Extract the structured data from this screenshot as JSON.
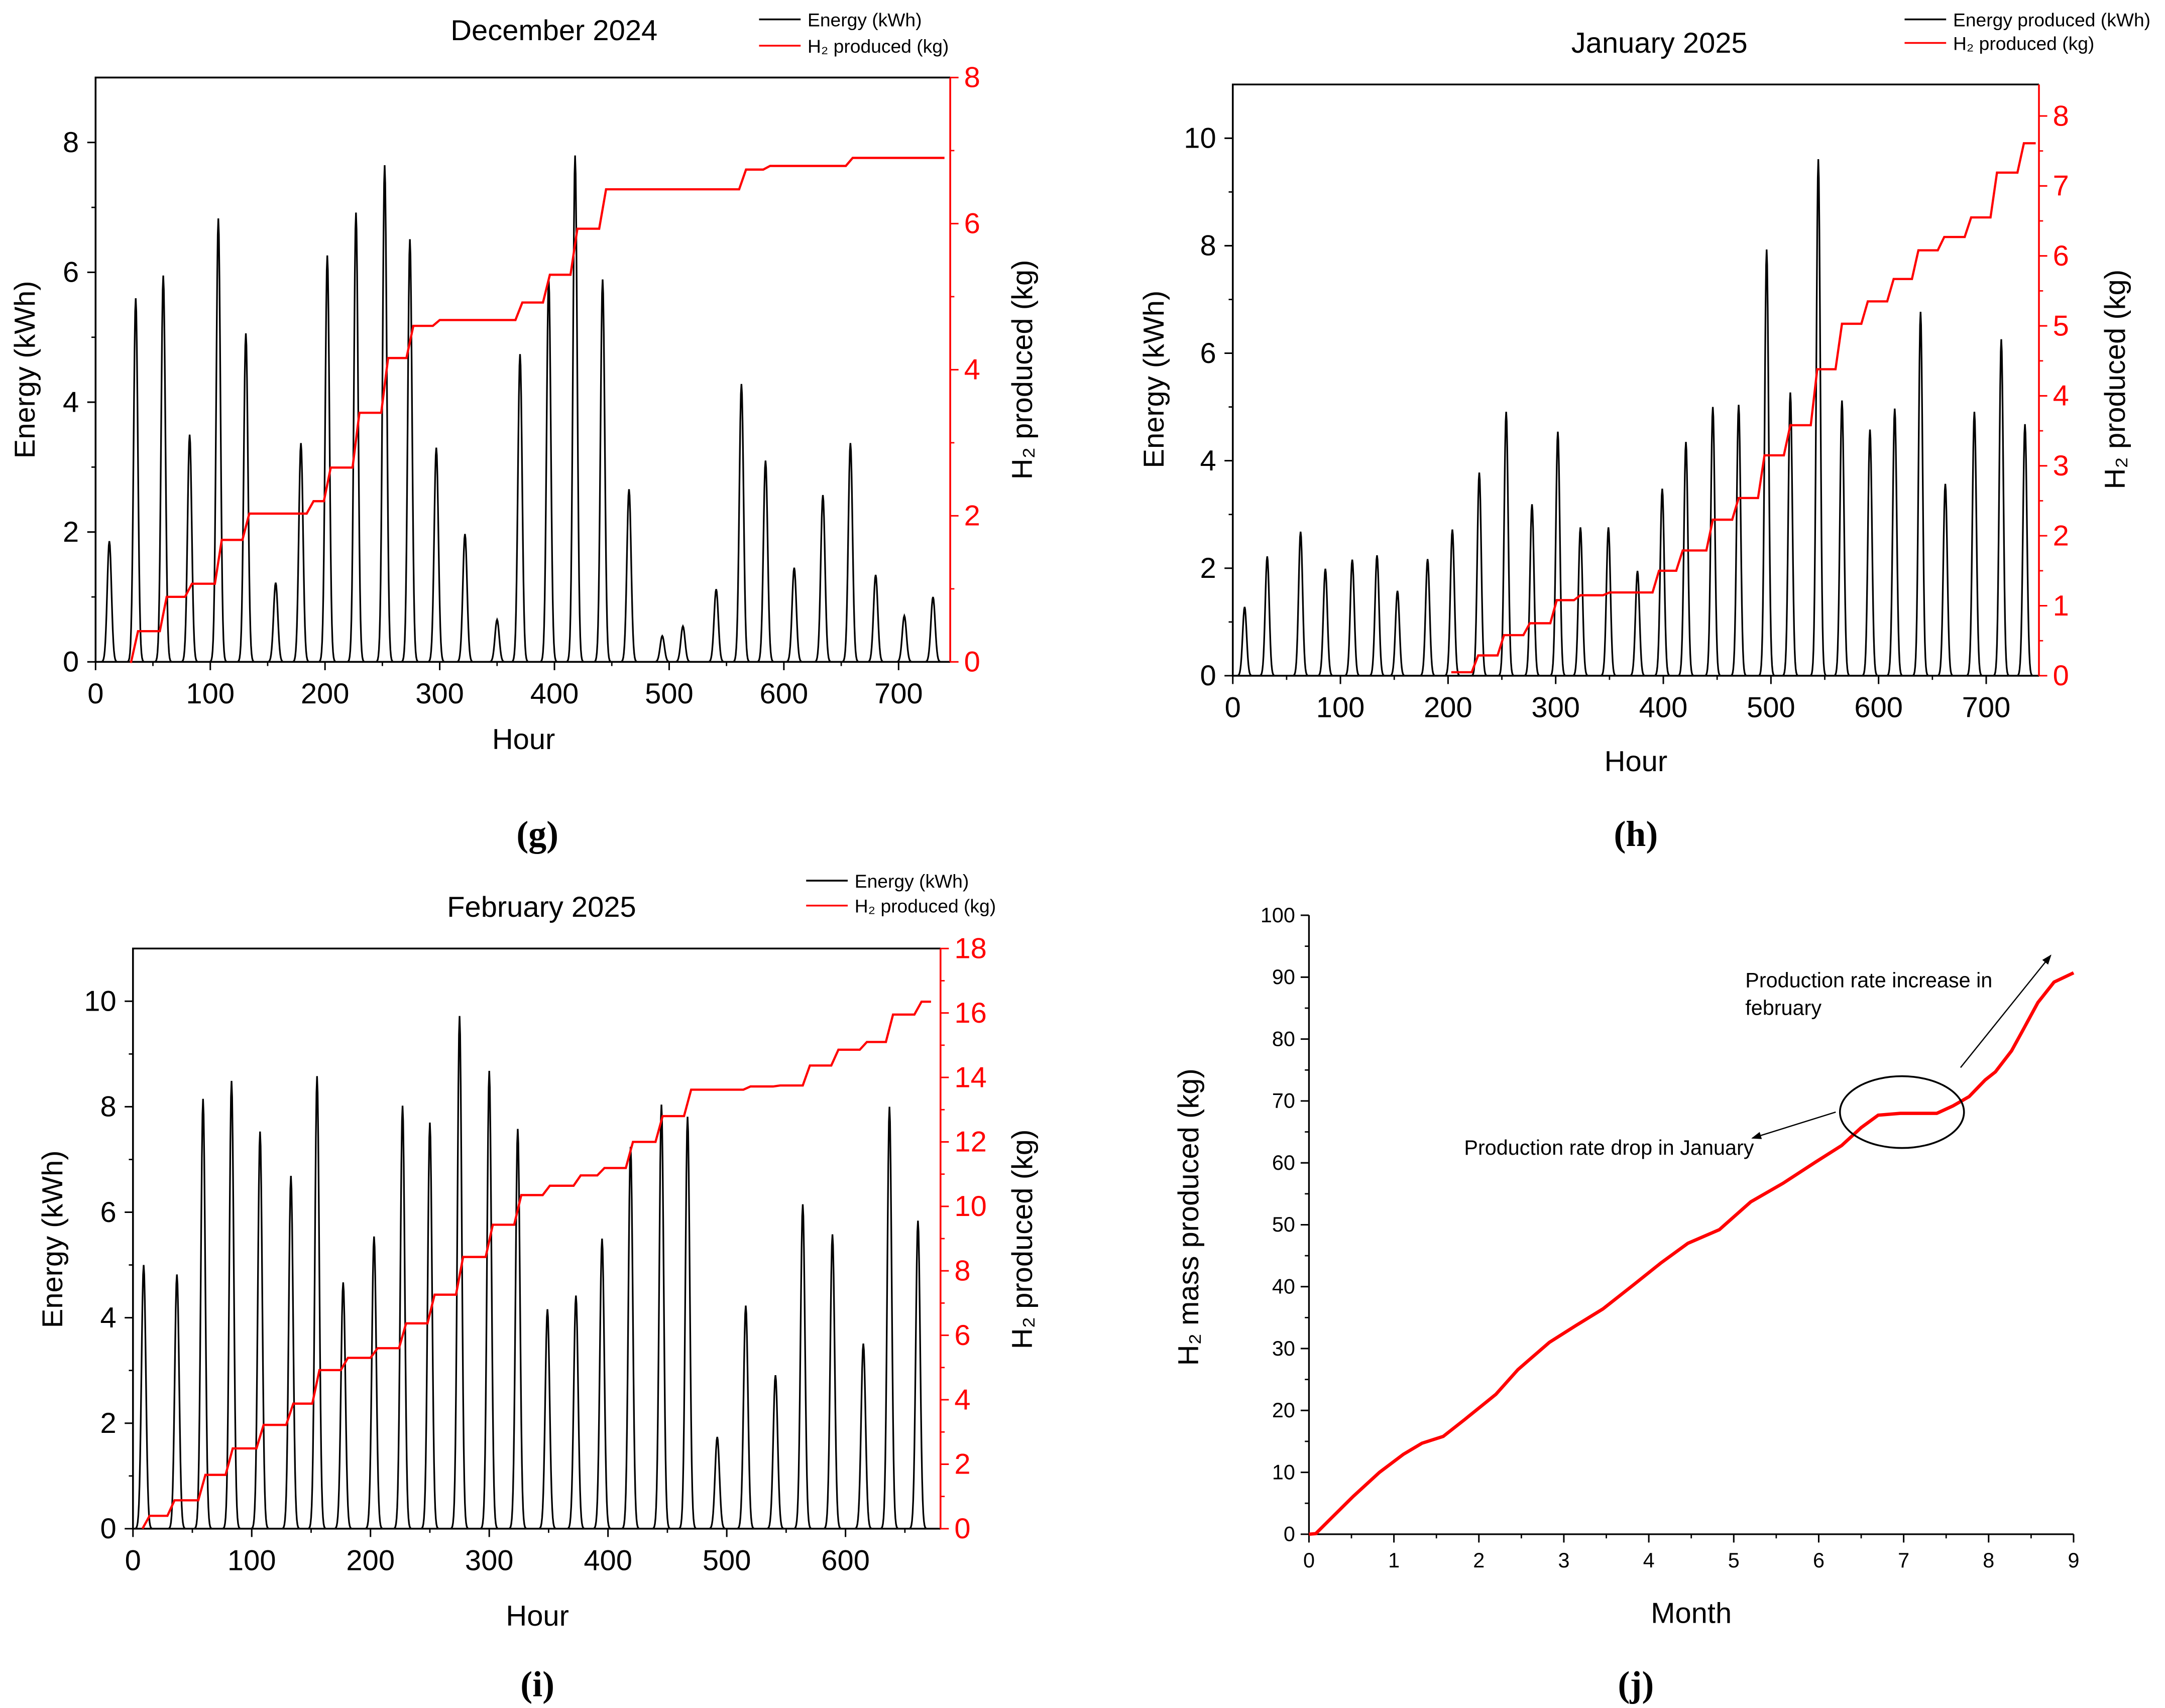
{
  "colors": {
    "energy": "#000000",
    "h2": "#ff0000",
    "axis": "#000000"
  },
  "chart_data": [
    {
      "id": "g",
      "type": "line",
      "panel_label": "(g)",
      "title": "December 2024",
      "xlabel": "Hour",
      "ylabel": "Energy (kWh)",
      "y2label": "H₂ produced (kg)",
      "legend": {
        "energy": "Energy (kWh)",
        "h2": "H₂ produced (kg)",
        "placement": "top-right"
      },
      "xlim": [
        0,
        745
      ],
      "ylim": [
        0,
        9
      ],
      "y2lim": [
        0,
        8
      ],
      "x_ticks": [
        "0",
        "100",
        "200",
        "300",
        "400",
        "500",
        "600",
        "700"
      ],
      "y_ticks": [
        "0",
        "2",
        "4",
        "6",
        "8"
      ],
      "y2_ticks": [
        "0",
        "2",
        "4",
        "6",
        "8"
      ],
      "energy_daily_peaks": {
        "hour": [
          12,
          35,
          59,
          82,
          107,
          131,
          157,
          179,
          202,
          227,
          252,
          274,
          297,
          322,
          350,
          370,
          395,
          418,
          442,
          465,
          494,
          512,
          541,
          563,
          584,
          609,
          634,
          658,
          680,
          705,
          730
        ],
        "kwh": [
          1.86,
          5.6,
          5.95,
          3.5,
          6.83,
          5.06,
          1.22,
          3.37,
          6.26,
          6.92,
          7.65,
          6.51,
          3.3,
          1.97,
          0.65,
          4.74,
          5.9,
          7.8,
          5.89,
          2.66,
          0.4,
          0.55,
          1.12,
          4.28,
          3.1,
          1.45,
          2.57,
          3.37,
          1.34,
          0.71,
          1.0
        ]
      },
      "h2_steps": {
        "hour": [
          30,
          37,
          62,
          84,
          110,
          134,
          190,
          205,
          230,
          255,
          277,
          300,
          372,
          396,
          420,
          445,
          567,
          588,
          660,
          740
        ],
        "kg": [
          0,
          0.42,
          0.89,
          1.07,
          1.67,
          2.03,
          2.2,
          2.66,
          3.41,
          4.16,
          4.6,
          4.68,
          4.92,
          5.3,
          5.93,
          6.47,
          6.74,
          6.79,
          6.9,
          6.9
        ]
      }
    },
    {
      "id": "h",
      "type": "line",
      "panel_label": "(h)",
      "title": "January 2025",
      "xlabel": "Hour",
      "ylabel": "Energy (kWh)",
      "y2label": "H₂ produced (kg)",
      "legend": {
        "energy": "Energy produced (kWh)",
        "h2": "H₂ produced (kg)",
        "placement": "top-right"
      },
      "xlim": [
        0,
        749
      ],
      "ylim": [
        0,
        11
      ],
      "y2lim": [
        0,
        8.45
      ],
      "x_ticks": [
        "0",
        "100",
        "200",
        "300",
        "400",
        "500",
        "600",
        "700"
      ],
      "y_ticks": [
        "0",
        "2",
        "4",
        "6",
        "8",
        "10"
      ],
      "y2_ticks": [
        "0",
        "1",
        "2",
        "3",
        "4",
        "5",
        "6",
        "7",
        "8"
      ],
      "energy_daily_peaks": {
        "hour": [
          11,
          32,
          63,
          86,
          111,
          134,
          153,
          181,
          204,
          229,
          254,
          278,
          302,
          323,
          349,
          376,
          399,
          421,
          446,
          470,
          496,
          518,
          544,
          566,
          592,
          615,
          639,
          662,
          689,
          714,
          736
        ],
        "kwh": [
          1.28,
          2.22,
          2.68,
          1.99,
          2.16,
          2.24,
          1.58,
          2.17,
          2.72,
          3.78,
          4.91,
          3.19,
          4.54,
          2.76,
          2.76,
          1.95,
          3.48,
          4.35,
          5.0,
          5.04,
          7.93,
          5.27,
          9.61,
          5.12,
          4.58,
          4.97,
          6.77,
          3.57,
          4.91,
          6.26,
          4.68
        ]
      },
      "h2_steps": {
        "hour": [
          203,
          228,
          252,
          276,
          301,
          323,
          350,
          396,
          418,
          446,
          470,
          494,
          518,
          543,
          566,
          590,
          614,
          637,
          661,
          686,
          710,
          735,
          746
        ],
        "kg": [
          0.05,
          0.29,
          0.58,
          0.75,
          1.08,
          1.15,
          1.19,
          1.5,
          1.79,
          2.23,
          2.54,
          3.15,
          3.58,
          4.38,
          5.03,
          5.35,
          5.67,
          6.08,
          6.27,
          6.55,
          7.19,
          7.61,
          7.61
        ]
      }
    },
    {
      "id": "i",
      "type": "line",
      "panel_label": "(i)",
      "title": "February 2025",
      "xlabel": "Hour",
      "ylabel": "Energy (kWh)",
      "y2label": "H₂ produced (kg)",
      "legend": {
        "energy": "Energy (kWh)",
        "h2": "H₂ produced (kg)",
        "placement": "top-right"
      },
      "xlim": [
        0,
        680
      ],
      "ylim": [
        0,
        11
      ],
      "y2lim": [
        0,
        18
      ],
      "x_ticks": [
        "0",
        "100",
        "200",
        "300",
        "400",
        "500",
        "600"
      ],
      "y_ticks": [
        "0",
        "2",
        "4",
        "6",
        "8",
        "10"
      ],
      "y2_ticks": [
        "0",
        "2",
        "4",
        "6",
        "8",
        "10",
        "12",
        "14",
        "16",
        "18"
      ],
      "energy_daily_peaks": {
        "hour": [
          9,
          37,
          59,
          83,
          107,
          133,
          155,
          177,
          203,
          227,
          250,
          275,
          300,
          324,
          349,
          373,
          395,
          419,
          445,
          467,
          492,
          516,
          541,
          564,
          589,
          615,
          637,
          661
        ],
        "kwh": [
          5.0,
          4.82,
          8.15,
          8.49,
          7.53,
          6.69,
          8.58,
          4.67,
          5.54,
          8.02,
          7.7,
          9.72,
          8.68,
          7.58,
          4.16,
          4.42,
          5.5,
          7.24,
          8.04,
          7.81,
          1.74,
          4.23,
          2.91,
          6.15,
          5.58,
          3.51,
          8.0,
          5.84
        ]
      },
      "h2_steps": {
        "hour": [
          8,
          14,
          35,
          61,
          84,
          110,
          135,
          157,
          181,
          206,
          230,
          254,
          278,
          303,
          327,
          351,
          377,
          397,
          421,
          446,
          470,
          520,
          545,
          570,
          594,
          618,
          640,
          664,
          672
        ],
        "kg": [
          0,
          0.4,
          0.88,
          1.67,
          2.49,
          3.22,
          3.88,
          4.92,
          5.3,
          5.6,
          6.37,
          7.26,
          8.43,
          9.43,
          10.35,
          10.64,
          10.96,
          11.19,
          12.0,
          12.8,
          13.62,
          13.72,
          13.75,
          14.37,
          14.86,
          15.1,
          15.95,
          16.35,
          16.35
        ]
      }
    },
    {
      "id": "j",
      "type": "line",
      "panel_label": "(j)",
      "xlabel": "Month",
      "ylabel": "H₂ mass produced (kg)",
      "xlim": [
        0,
        9
      ],
      "ylim": [
        0,
        100
      ],
      "x_ticks": [
        "0",
        "1",
        "2",
        "3",
        "4",
        "5",
        "6",
        "7",
        "8",
        "9"
      ],
      "y_ticks": [
        "0",
        "10",
        "20",
        "30",
        "40",
        "50",
        "60",
        "70",
        "80",
        "90",
        "100"
      ],
      "series": [
        {
          "name": "H₂ mass produced",
          "x": [
            0,
            0.08,
            0.27,
            0.52,
            0.83,
            1.11,
            1.33,
            1.58,
            1.83,
            2.2,
            2.46,
            2.67,
            2.83,
            3.14,
            3.46,
            3.83,
            4.14,
            4.46,
            4.83,
            5.2,
            5.58,
            5.96,
            6.27,
            6.5,
            6.7,
            6.96,
            7.39,
            7.58,
            7.77,
            7.96,
            8.08,
            8.27,
            8.39,
            8.58,
            8.77,
            9.0
          ],
          "y": [
            0,
            0.1,
            2.7,
            6.1,
            10,
            12.9,
            14.7,
            15.8,
            18.5,
            22.6,
            26.6,
            29.1,
            31,
            33.7,
            36.4,
            40.4,
            43.8,
            47,
            49.2,
            53.7,
            56.7,
            60.1,
            62.8,
            65.7,
            67.7,
            68,
            68,
            69.2,
            70.7,
            73.4,
            74.7,
            78.1,
            81.1,
            85.9,
            89.2,
            90.7
          ]
        }
      ],
      "annotations": {
        "increase_line1": "Production rate increase in",
        "increase_line2": "february",
        "drop": "Production rate drop in January"
      }
    }
  ]
}
